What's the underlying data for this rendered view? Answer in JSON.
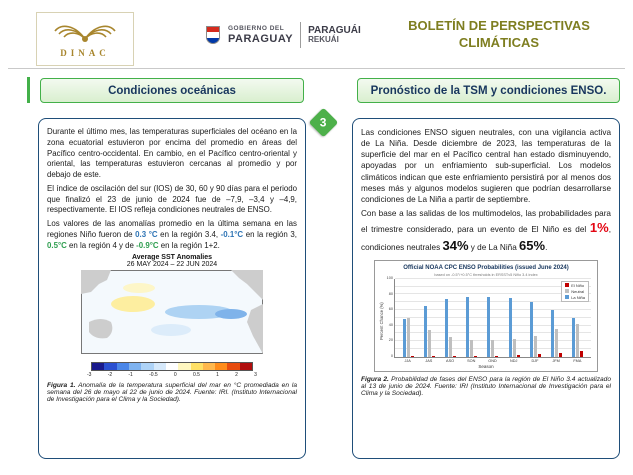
{
  "header": {
    "dinac_label": "DINAC",
    "gob_line1": "GOBIERNO DEL",
    "gob_line2": "PARAGUAY",
    "rekuai_line1": "PARAGUÁI",
    "rekuai_line2": "REKUÁI",
    "title_line1": "BOLETÍN DE PERSPECTIVAS",
    "title_line2": "CLIMÁTICAS",
    "accent_color": "#43b049",
    "title_color": "#7e7e20"
  },
  "badge": {
    "number": "3"
  },
  "left": {
    "title": "Condiciones oceánicas",
    "para1": "Durante el último mes, las temperaturas superficiales del océano en la zona ecuatorial estuvieron por encima del promedio en áreas del Pacífico centro-occidental. En cambio, en el Pacífico centro-oriental y oriental, las temperaturas estuvieron cercanas al promedio y por debajo de este.",
    "para2": "El índice de oscilación del sur (IOS) de 30, 60 y 90 días para el periodo que finalizó el 23 de junio de 2024 fue de –7,9, –3,4 y –4,9, respectivamente. El IOS refleja condiciones neutrales de ENSO.",
    "para3_runs": [
      {
        "t": "Los valores de las anomalías promedio en la última semana en las regiones Niño fueron de "
      },
      {
        "t": "0.3 °C",
        "c": "val-blue"
      },
      {
        "t": " en la región 3.4, "
      },
      {
        "t": "-0.1°C",
        "c": "val-blue"
      },
      {
        "t": " en la región 3, "
      },
      {
        "t": "0.5°C",
        "c": "val-green"
      },
      {
        "t": " en la región 4 y de "
      },
      {
        "t": "-0.9°C",
        "c": "val-green"
      },
      {
        "t": " en la región 1+2."
      }
    ],
    "figure": {
      "title": "Average SST Anomalies",
      "subtitle": "26 MAY 2024 – 22 JUN 2024",
      "colorbar_labels": [
        "-3",
        "-2",
        "-1",
        "-0.5",
        "0",
        "0.5",
        "1",
        "2",
        "3"
      ],
      "colorbar_colors": [
        "#1a1a8c",
        "#2a4fd0",
        "#4a86e8",
        "#7fb3f0",
        "#aed3f7",
        "#d6e9fb",
        "#ffffff",
        "#fff7c0",
        "#ffe066",
        "#ffb84d",
        "#ff8c1a",
        "#e84c0e",
        "#b00d0d"
      ]
    },
    "caption_runs": [
      {
        "t": "Figura 1.",
        "c": "cap-bold"
      },
      {
        "t": " Anomalía de la temperatura superficial del mar en °C promediada en la semana del 26 de mayo al 22 de junio de 2024. Fuente: IRI. (Instituto Internacional de Investigación para el Clima y la Sociedad)."
      }
    ]
  },
  "right": {
    "title": "Pronóstico de la TSM y condiciones ENSO.",
    "para1": "Las condiciones ENSO siguen neutrales, con una vigilancia activa de La Niña. Desde diciembre de 2023, las temperaturas de la superficie del mar en el Pacífico central han estado disminuyendo, apoyadas por un enfriamiento sub-superficial. Los modelos climáticos indican que este enfriamiento persistirá por al menos dos meses más y algunos modelos sugieren que podrían desarrollarse condiciones de La Niña a partir de septiembre.",
    "para2_runs": [
      {
        "t": "Con base a las salidas de los multimodelos, las probabilidades para el trimestre considerado, para un evento de El Niño es del "
      },
      {
        "t": "1%",
        "c": "big-red"
      },
      {
        "t": ", condiciones neutrales "
      },
      {
        "t": "34%",
        "c": "big-bold"
      },
      {
        "t": " y de La Niña "
      },
      {
        "t": "65%",
        "c": "big-bold"
      },
      {
        "t": "."
      }
    ],
    "caption_runs": [
      {
        "t": "Figura 2.",
        "c": "cap-bold"
      },
      {
        "t": " Probabilidad de fases del ENSO para la región de El Niño 3.4 actualizado al 13 de junio de 2024. Fuente: IRI (Instituto Internacional de Investigación para el Clima y la Sociedad)."
      }
    ]
  },
  "chart_data": {
    "type": "bar",
    "title": "Official NOAA CPC ENSO Probabilities (issued June 2024)",
    "note": "based on -0.5°/+0.5°C thresholds in ERSSTv5 Niño 3.4 index",
    "categories": [
      "JJA",
      "JAS",
      "ASO",
      "SON",
      "OND",
      "NDJ",
      "DJF",
      "JFM",
      "FMA"
    ],
    "series": [
      {
        "name": "La Niña",
        "color": "#5b9bd5",
        "values": [
          49,
          65,
          74,
          77,
          77,
          75,
          70,
          60,
          50
        ]
      },
      {
        "name": "Neutral",
        "color": "#bfbfbf",
        "values": [
          50,
          34,
          25,
          22,
          22,
          23,
          27,
          35,
          42
        ]
      },
      {
        "name": "El Niño",
        "color": "#c00000",
        "values": [
          1,
          1,
          1,
          1,
          1,
          2,
          3,
          5,
          8
        ]
      }
    ],
    "xlabel": "Season",
    "ylabel": "Percent Chance (%)",
    "ylim": [
      0,
      100
    ],
    "yticks": [
      0,
      20,
      40,
      60,
      80,
      100
    ],
    "legend_position": "top-right",
    "legend": [
      {
        "name": "El Niño",
        "color": "#c00000"
      },
      {
        "name": "Neutral",
        "color": "#bfbfbf"
      },
      {
        "name": "La Niña",
        "color": "#5b9bd5"
      }
    ]
  }
}
